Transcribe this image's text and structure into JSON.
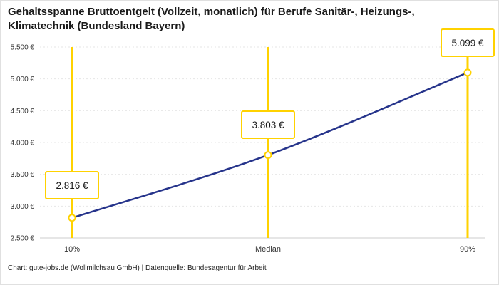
{
  "title": "Gehaltsspanne Bruttoentgelt (Vollzeit, monatlich) für Berufe Sanitär-, Heizungs-, Klimatechnik (Bundesland Bayern)",
  "footer": "Chart: gute-jobs.de (Wollmilchsau GmbH) | Datenquelle: Bundesagentur für Arbeit",
  "chart_data": {
    "type": "line",
    "title": "Gehaltsspanne Bruttoentgelt (Vollzeit, monatlich) für Berufe Sanitär-, Heizungs-, Klimatechnik (Bundesland Bayern)",
    "categories": [
      "10%",
      "Median",
      "90%"
    ],
    "values": [
      2816,
      3803,
      5099
    ],
    "point_labels": [
      "2.816 €",
      "3.803 €",
      "5.099 €"
    ],
    "xlabel": "",
    "ylabel": "",
    "ylim": [
      2500,
      5500
    ],
    "ytick_step": 500,
    "ytick_labels": [
      "2.500 €",
      "3.000 €",
      "3.500 €",
      "4.000 €",
      "4.500 €",
      "5.000 €",
      "5.500 €"
    ],
    "grid": true,
    "legend": "none",
    "colors": {
      "line": "#26348B",
      "marker": "#FFD200",
      "grid": "#e6e6e6",
      "axis": "#cccccc",
      "text": "#333333"
    }
  }
}
